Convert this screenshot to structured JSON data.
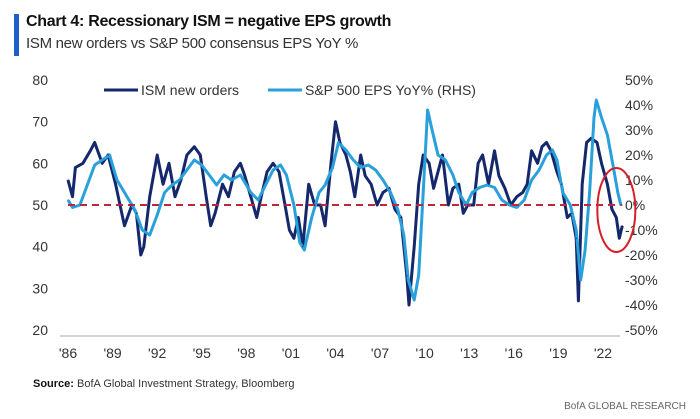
{
  "title": "Chart 4: Recessionary ISM = negative EPS growth",
  "subtitle": "ISM new orders vs S&P 500 consensus EPS YoY %",
  "source_label": "Source:",
  "source_text": "BofA Global Investment Strategy, Bloomberg",
  "brand": "BofA GLOBAL RESEARCH",
  "chart_data": {
    "type": "line",
    "title": "Chart 4: Recessionary ISM = negative EPS growth",
    "subtitle": "ISM new orders vs S&P 500 consensus EPS YoY %",
    "xlim": [
      1985.8,
      2024.2
    ],
    "x_ticks": [
      1986,
      1989,
      1992,
      1995,
      1998,
      2001,
      2004,
      2007,
      2010,
      2013,
      2016,
      2019,
      2022
    ],
    "x_tick_labels": [
      "'86",
      "'89",
      "'92",
      "'95",
      "'98",
      "'01",
      "'04",
      "'07",
      "'10",
      "'13",
      "'16",
      "'19",
      "'22"
    ],
    "y_left": {
      "lim": [
        20,
        80
      ],
      "ticks": [
        20,
        30,
        40,
        50,
        60,
        70,
        80
      ],
      "tick_labels": [
        "20",
        "30",
        "40",
        "50",
        "60",
        "70",
        "80"
      ]
    },
    "y_right": {
      "lim": [
        -50,
        50
      ],
      "ticks": [
        -50,
        -40,
        -30,
        -20,
        -10,
        0,
        10,
        20,
        30,
        40,
        50
      ],
      "tick_labels": [
        "-50%",
        "-40%",
        "-30%",
        "-20%",
        "-10%",
        "0%",
        "10%",
        "20%",
        "30%",
        "40%",
        "50%"
      ]
    },
    "grid": false,
    "legend_position": "top",
    "reference_line": {
      "axis": "left",
      "value": 50,
      "color": "#c0283a",
      "style": "dashed"
    },
    "annotation": {
      "type": "ellipse",
      "color": "#d62027",
      "around": "2022-2023"
    },
    "series": [
      {
        "name": "ISM new orders",
        "axis": "left",
        "color": "#14286b",
        "x": [
          1986.0,
          1986.3,
          1986.5,
          1987.0,
          1987.5,
          1987.8,
          1988.3,
          1988.7,
          1989.2,
          1989.5,
          1989.8,
          1990.3,
          1990.6,
          1990.9,
          1991.1,
          1991.5,
          1991.8,
          1992.0,
          1992.4,
          1992.8,
          1993.2,
          1993.6,
          1994.0,
          1994.5,
          1994.9,
          1995.3,
          1995.6,
          1995.9,
          1996.4,
          1996.8,
          1997.2,
          1997.6,
          1997.9,
          1998.3,
          1998.7,
          1999.0,
          1999.4,
          1999.8,
          2000.2,
          2000.6,
          2000.9,
          2001.2,
          2001.5,
          2001.8,
          2002.2,
          2002.6,
          2003.0,
          2003.3,
          2003.7,
          2004.0,
          2004.3,
          2004.7,
          2005.0,
          2005.3,
          2005.7,
          2006.0,
          2006.4,
          2006.8,
          2007.2,
          2007.6,
          2008.0,
          2008.4,
          2008.8,
          2008.95,
          2009.3,
          2009.6,
          2009.9,
          2010.3,
          2010.6,
          2010.9,
          2011.2,
          2011.6,
          2011.9,
          2012.3,
          2012.6,
          2012.9,
          2013.3,
          2013.6,
          2013.9,
          2014.3,
          2014.7,
          2015.0,
          2015.4,
          2015.8,
          2016.2,
          2016.6,
          2016.9,
          2017.2,
          2017.6,
          2017.9,
          2018.2,
          2018.5,
          2018.9,
          2019.2,
          2019.6,
          2019.9,
          2020.2,
          2020.35,
          2020.6,
          2020.9,
          2021.2,
          2021.6,
          2021.9,
          2022.3,
          2022.6,
          2022.9,
          2023.1,
          2023.3
        ],
        "values": [
          56,
          52,
          59,
          60,
          63,
          65,
          60,
          62,
          55,
          50,
          45,
          50,
          48,
          38,
          40,
          52,
          58,
          62,
          55,
          60,
          52,
          56,
          62,
          64,
          62,
          52,
          45,
          48,
          55,
          52,
          58,
          60,
          57,
          52,
          47,
          52,
          58,
          60,
          58,
          50,
          44,
          42,
          47,
          40,
          55,
          50,
          50,
          45,
          60,
          70,
          65,
          62,
          58,
          52,
          62,
          57,
          55,
          50,
          53,
          54,
          49,
          47,
          33,
          26,
          40,
          55,
          62,
          60,
          54,
          58,
          62,
          50,
          54,
          55,
          48,
          50,
          50,
          60,
          62,
          55,
          63,
          57,
          54,
          50,
          52,
          53,
          55,
          63,
          60,
          64,
          65,
          63,
          58,
          55,
          47,
          48,
          42,
          27,
          55,
          65,
          66,
          65,
          60,
          55,
          49,
          47,
          42,
          45
        ]
      },
      {
        "name": "S&P 500 EPS YoY% (RHS)",
        "axis": "right",
        "color": "#2aa0db",
        "x": [
          1986.0,
          1986.3,
          1986.8,
          1987.3,
          1987.8,
          1988.3,
          1988.8,
          1989.3,
          1989.8,
          1990.5,
          1991.0,
          1991.5,
          1992.0,
          1992.5,
          1993.0,
          1993.5,
          1994.0,
          1994.5,
          1995.0,
          1995.5,
          1996.0,
          1996.5,
          1997.0,
          1997.6,
          1998.3,
          1998.8,
          1999.3,
          1999.8,
          2000.3,
          2000.7,
          2001.2,
          2001.6,
          2001.9,
          2002.4,
          2002.9,
          2003.3,
          2003.8,
          2004.2,
          2004.7,
          2005.2,
          2005.7,
          2006.2,
          2006.7,
          2007.2,
          2007.7,
          2008.2,
          2008.6,
          2008.9,
          2009.3,
          2009.6,
          2009.9,
          2010.2,
          2010.5,
          2010.9,
          2011.4,
          2011.9,
          2012.3,
          2012.8,
          2013.2,
          2013.7,
          2014.2,
          2014.7,
          2015.2,
          2015.7,
          2016.2,
          2016.7,
          2017.2,
          2017.7,
          2018.2,
          2018.6,
          2018.9,
          2019.3,
          2019.8,
          2020.2,
          2020.5,
          2020.8,
          2021.1,
          2021.4,
          2021.55,
          2021.9,
          2022.3,
          2022.7,
          2023.0,
          2023.2
        ],
        "values": [
          2,
          -1,
          0,
          8,
          16,
          18,
          20,
          10,
          5,
          -2,
          -10,
          -12,
          -4,
          5,
          8,
          10,
          14,
          18,
          16,
          12,
          8,
          12,
          10,
          12,
          5,
          2,
          8,
          14,
          16,
          12,
          0,
          -15,
          -18,
          -5,
          5,
          8,
          15,
          25,
          22,
          18,
          15,
          16,
          14,
          10,
          5,
          -2,
          -12,
          -30,
          -38,
          -28,
          5,
          38,
          30,
          20,
          18,
          12,
          5,
          0,
          5,
          7,
          8,
          7,
          2,
          0,
          -1,
          2,
          10,
          14,
          20,
          22,
          18,
          5,
          0,
          -10,
          -30,
          -18,
          5,
          35,
          42,
          35,
          28,
          15,
          5,
          0
        ]
      }
    ]
  }
}
